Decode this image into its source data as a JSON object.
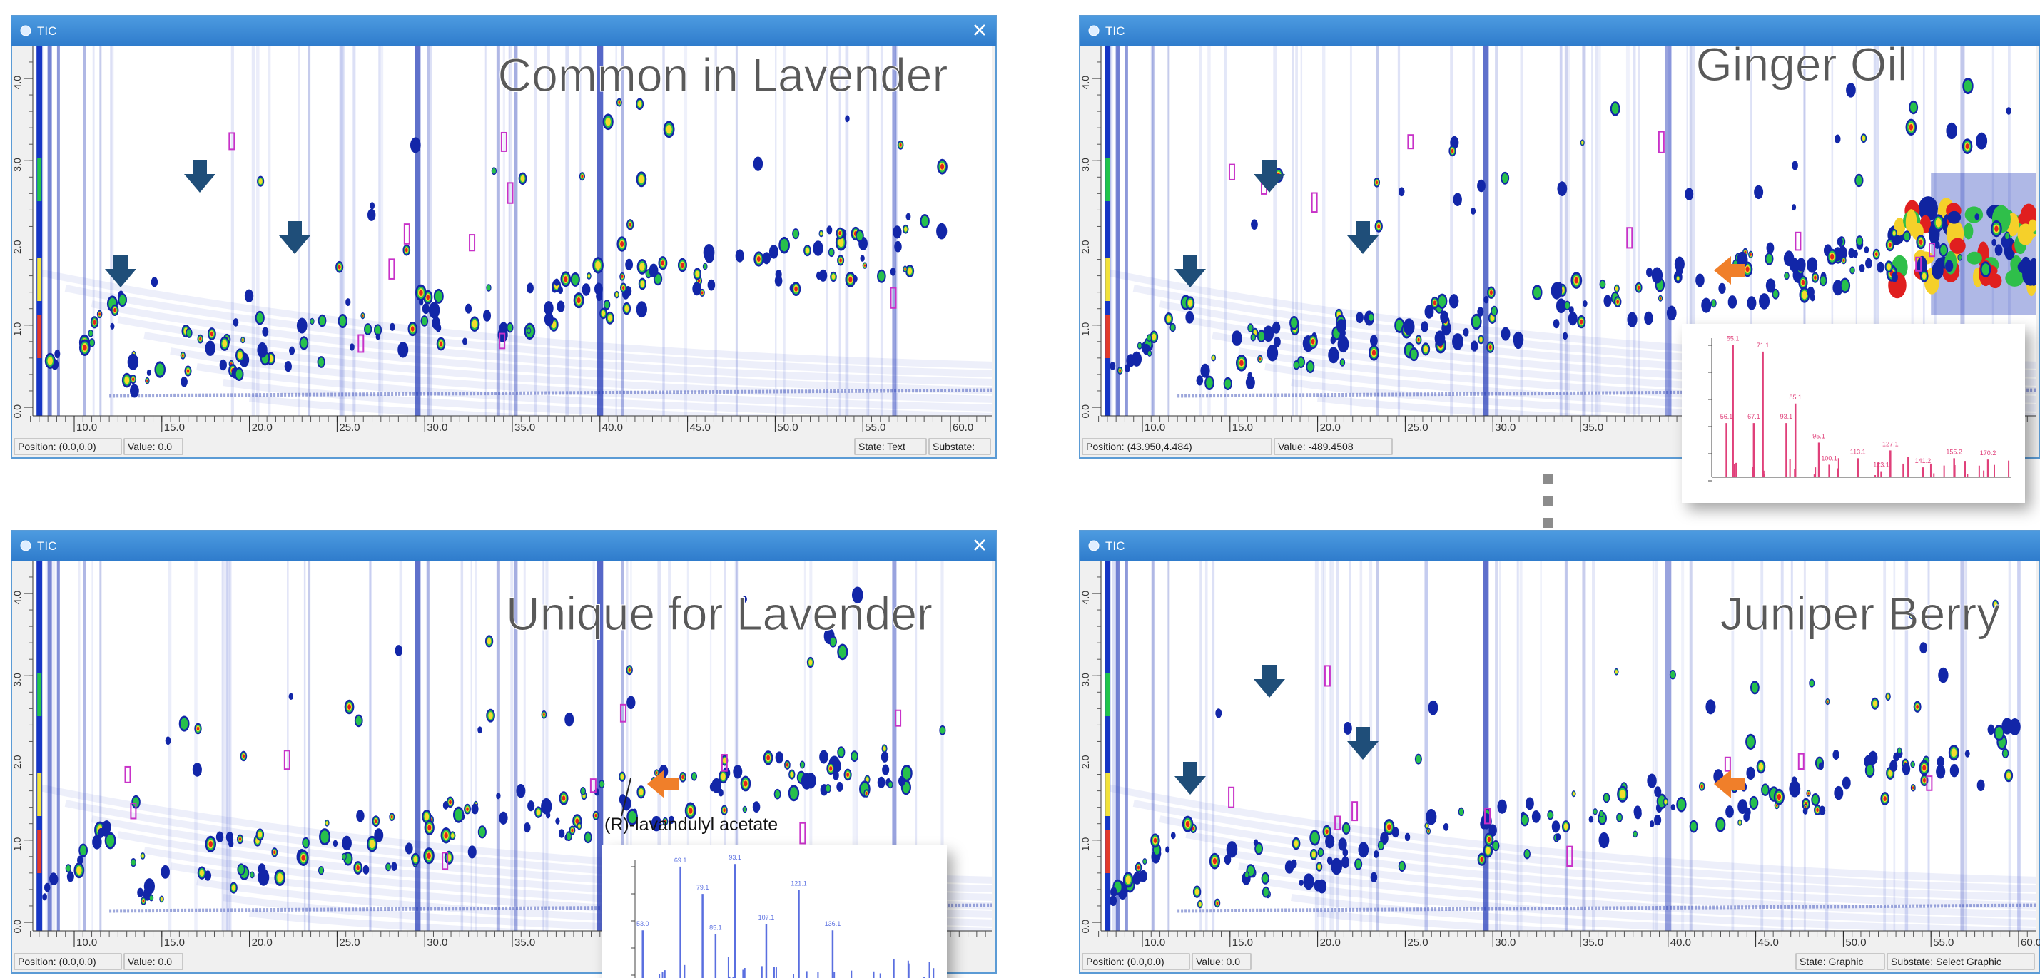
{
  "panels": [
    {
      "window_title": "TIC",
      "label": "Common in Lavender",
      "yticks": [
        "0.0",
        "1.0",
        "2.0",
        "3.0",
        "4.0"
      ],
      "xticks": [
        "10.0",
        "15.0",
        "20.0",
        "25.0",
        "30.0",
        "35.0",
        "40.0",
        "45.0",
        "50.0",
        "55.0",
        "60.0"
      ],
      "status": {
        "position": "Position: (0.0,0.0)",
        "value": "Value: 0.0",
        "state": "State: Text",
        "substate": "Substate:"
      }
    },
    {
      "window_title": "TIC",
      "label": "Ginger Oil",
      "yticks": [
        "0.0",
        "1.0",
        "2.0",
        "3.0",
        "4.0"
      ],
      "xticks": [
        "10.0",
        "15.0",
        "20.0",
        "25.0",
        "30.0",
        "35.0"
      ],
      "status": {
        "position": "Position: (43.950,4.484)",
        "value": "Value: -489.4508"
      }
    },
    {
      "window_title": "TIC",
      "label": "Unique for Lavender",
      "yticks": [
        "0.0",
        "1.0",
        "2.0",
        "3.0",
        "4.0"
      ],
      "xticks": [
        "10.0",
        "15.0",
        "20.0",
        "25.0",
        "30.0",
        "35.0"
      ],
      "status": {
        "position": "Position: (0.0,0.0)",
        "value": "Value: 0.0"
      }
    },
    {
      "window_title": "TIC",
      "label": "Juniper Berry",
      "yticks": [
        "0.0",
        "1.0",
        "2.0",
        "3.0",
        "4.0"
      ],
      "xticks": [
        "10.0",
        "15.0",
        "20.0",
        "25.0",
        "30.0",
        "35.0",
        "40.0",
        "45.0",
        "50.0",
        "55.0",
        "60.0"
      ],
      "status": {
        "position": "Position: (0.0,0.0)",
        "value": "Value: 0.0",
        "state": "State: Graphic",
        "substate": "Substate: Select Graphic"
      }
    }
  ],
  "annotation": "(R)-lavandulyl acetate",
  "spectra": [
    {
      "peaks": [
        "55.1",
        "71.1",
        "56.1",
        "67.1",
        "93.1",
        "85.1",
        "95.1",
        "100.1",
        "113.1",
        "127.1",
        "123.1",
        "141.2",
        "155.2",
        "170.2"
      ]
    },
    {
      "peaks": [
        "69.1",
        "93.1",
        "79.1",
        "53.0",
        "85.1",
        "107.1",
        "121.1",
        "136.1"
      ]
    }
  ]
}
